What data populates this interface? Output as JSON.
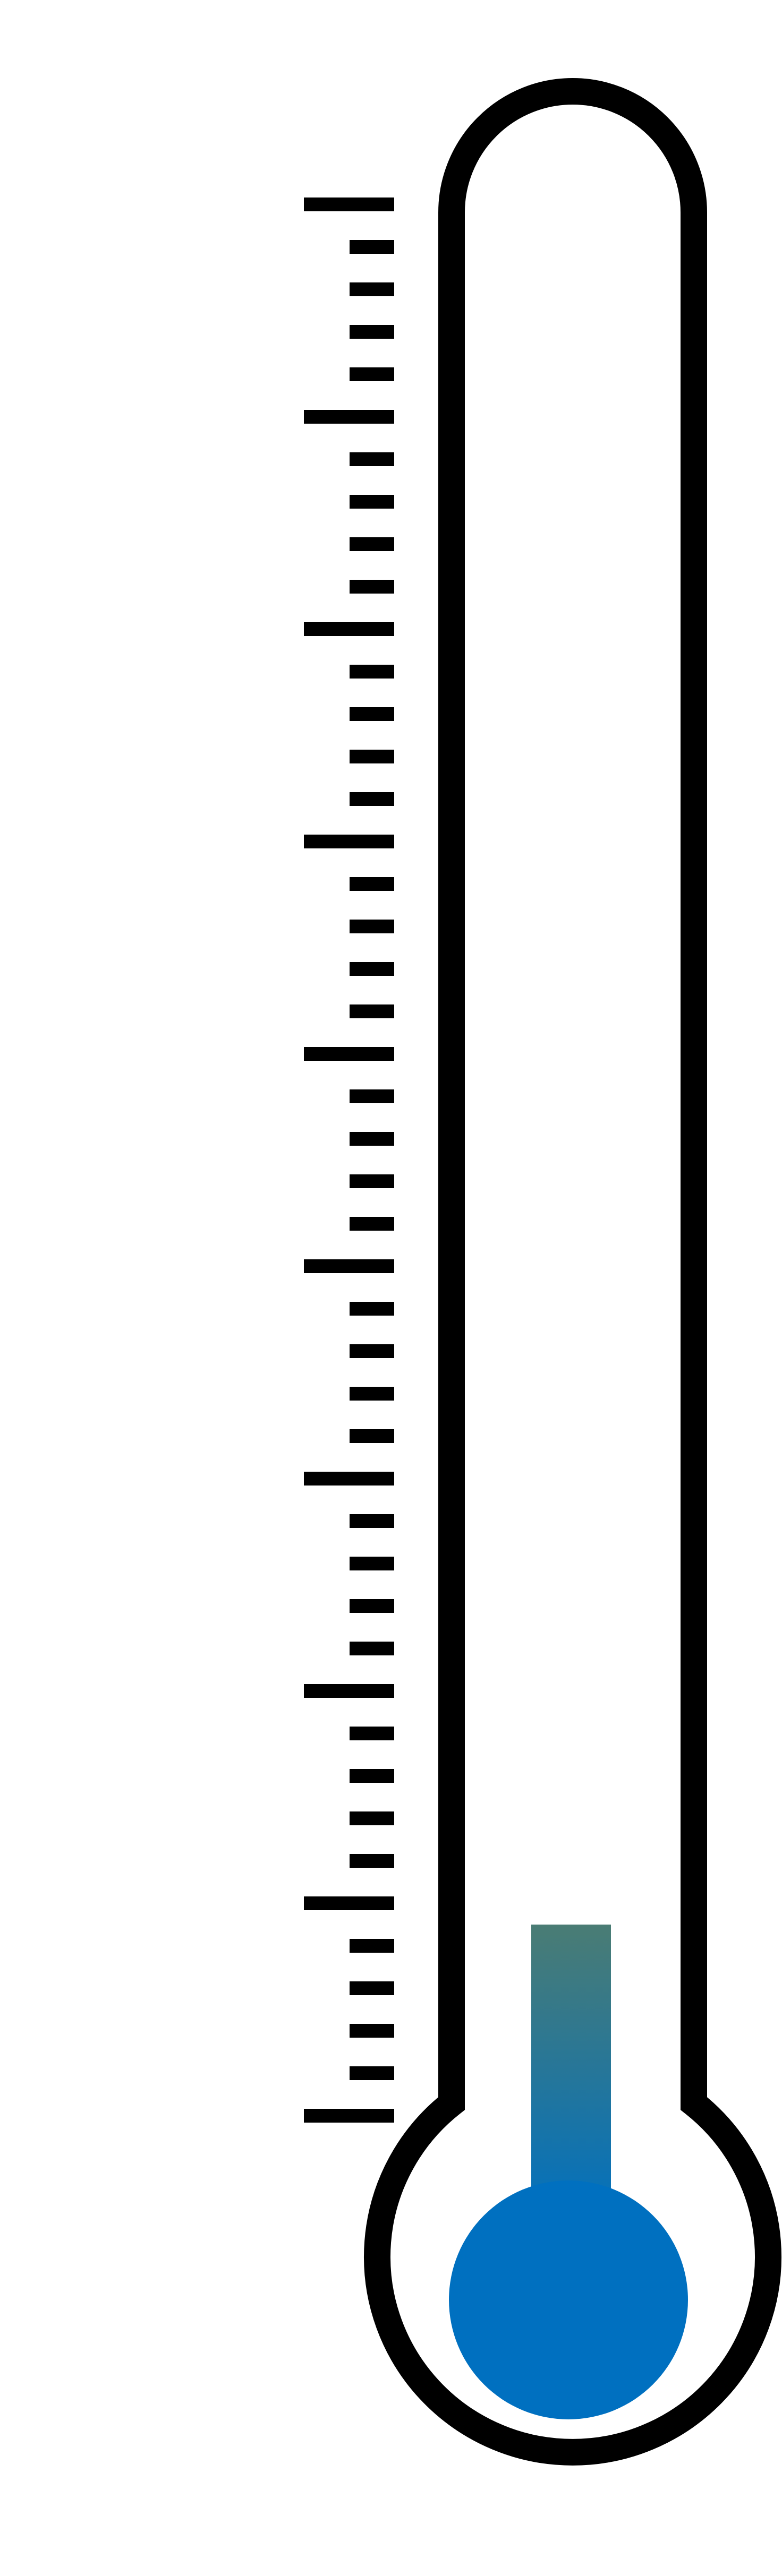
{
  "thermometer": {
    "scale": {
      "major_every": 5,
      "interval_count": 45
    },
    "fill_level": 0.1,
    "colors": {
      "outline": "#000000",
      "background": "#ffffff",
      "bulb": "#0070c0",
      "column_top": "#4a7c74",
      "column_bottom": "#0070c0"
    }
  }
}
